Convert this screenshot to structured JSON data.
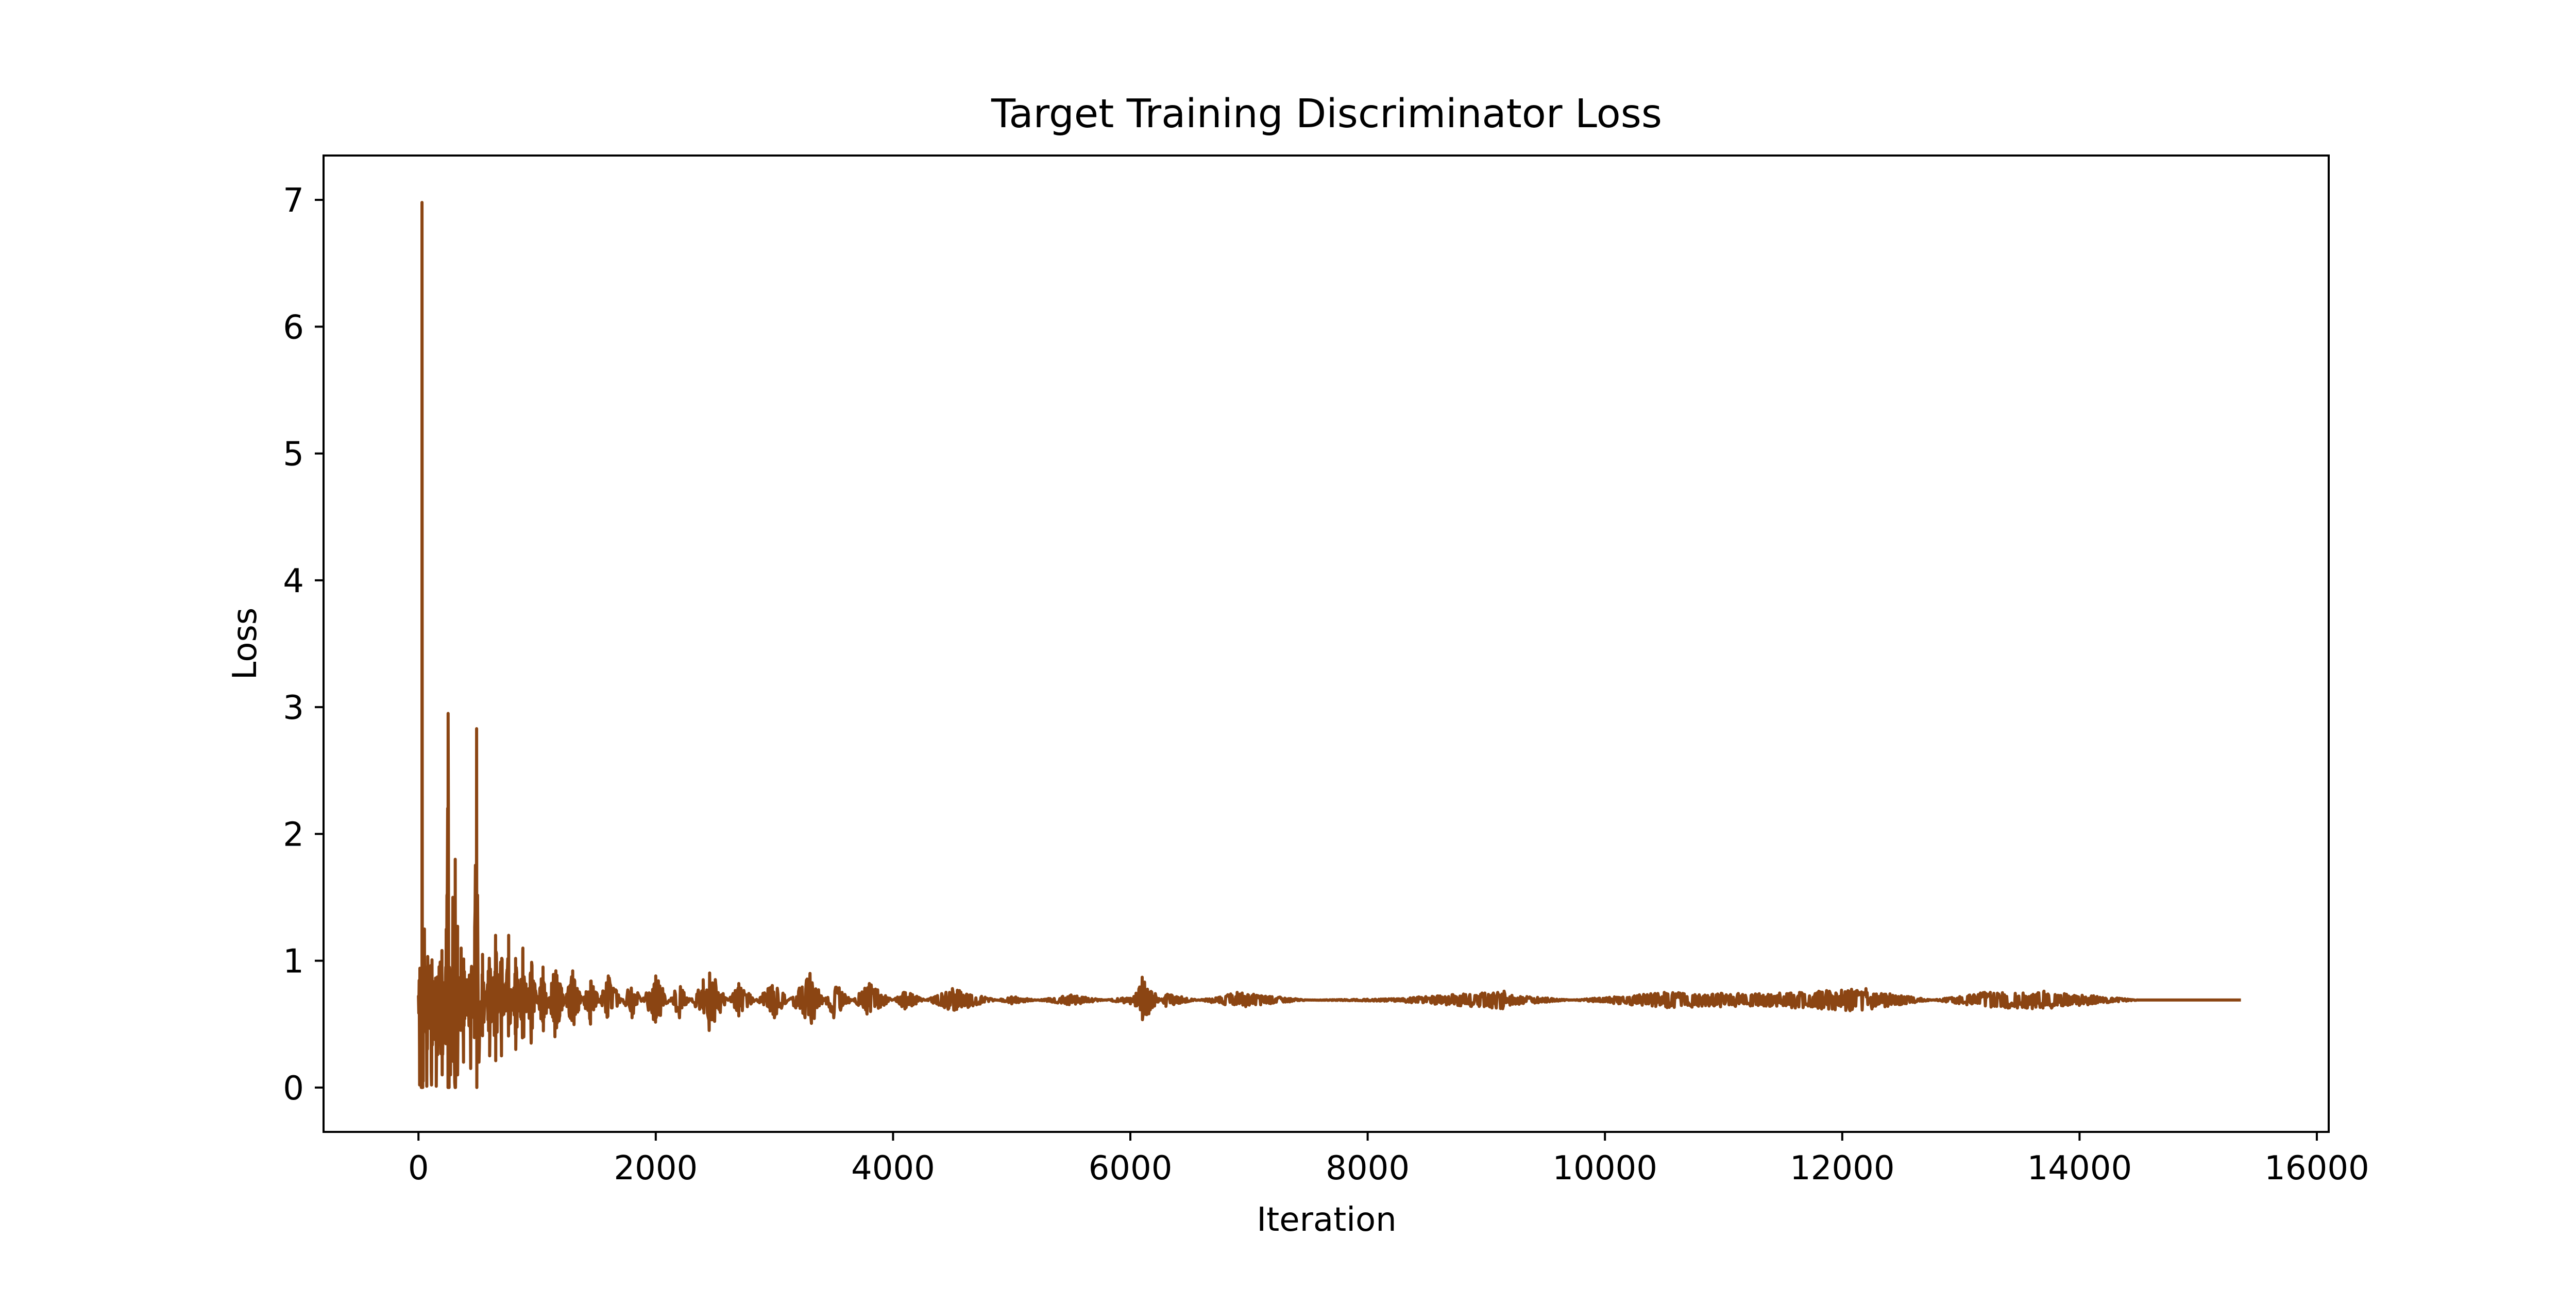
{
  "chart_data": {
    "type": "line",
    "title": "Target Training Discriminator Loss",
    "xlabel": "Iteration",
    "ylabel": "Loss",
    "xlim": [
      -800,
      16100
    ],
    "ylim": [
      -0.35,
      7.35
    ],
    "xticks": [
      0,
      2000,
      4000,
      6000,
      8000,
      10000,
      12000,
      14000,
      16000
    ],
    "yticks": [
      0,
      1,
      2,
      3,
      4,
      5,
      6,
      7
    ],
    "grid": false,
    "legend": "none",
    "series": [
      {
        "color": "#8B4513",
        "x_start": 0,
        "x_end": 15360,
        "values_approx": [
          [
            0,
            0.72
          ],
          [
            10,
            0.02
          ],
          [
            20,
            0.65
          ],
          [
            30,
            6.98
          ],
          [
            40,
            0.05
          ],
          [
            50,
            1.25
          ],
          [
            70,
            0.01
          ],
          [
            90,
            0.8
          ],
          [
            110,
            0.02
          ],
          [
            130,
            0.7
          ],
          [
            150,
            0.01
          ],
          [
            170,
            0.4
          ],
          [
            200,
            0.1
          ],
          [
            230,
            0.95
          ],
          [
            250,
            2.95
          ],
          [
            270,
            0.1
          ],
          [
            290,
            1.5
          ],
          [
            310,
            1.8
          ],
          [
            330,
            0.1
          ],
          [
            360,
            1.1
          ],
          [
            380,
            0.2
          ],
          [
            410,
            0.85
          ],
          [
            440,
            0.15
          ],
          [
            470,
            0.9
          ],
          [
            490,
            2.83
          ],
          [
            510,
            0.2
          ],
          [
            540,
            1.05
          ],
          [
            600,
            0.25
          ],
          [
            650,
            1.2
          ],
          [
            700,
            0.25
          ],
          [
            760,
            1.2
          ],
          [
            820,
            0.3
          ],
          [
            880,
            1.1
          ],
          [
            950,
            0.35
          ],
          [
            1050,
            0.95
          ],
          [
            1150,
            0.4
          ],
          [
            1300,
            0.92
          ],
          [
            1450,
            0.5
          ],
          [
            1600,
            0.88
          ],
          [
            1800,
            0.55
          ],
          [
            2000,
            0.88
          ],
          [
            2200,
            0.55
          ],
          [
            2400,
            0.85
          ],
          [
            2450,
            0.45
          ],
          [
            2700,
            0.82
          ],
          [
            3000,
            0.55
          ],
          [
            3300,
            0.9
          ],
          [
            3500,
            0.55
          ],
          [
            3800,
            0.82
          ],
          [
            4100,
            0.62
          ],
          [
            4500,
            0.78
          ],
          [
            5000,
            0.66
          ],
          [
            5500,
            0.73
          ],
          [
            6000,
            0.66
          ],
          [
            6100,
            0.87
          ],
          [
            6300,
            0.64
          ],
          [
            6900,
            0.75
          ],
          [
            7500,
            0.69
          ],
          [
            8200,
            0.7
          ],
          [
            9150,
            0.76
          ],
          [
            9200,
            0.65
          ],
          [
            10500,
            0.75
          ],
          [
            11300,
            0.74
          ],
          [
            12200,
            0.78
          ],
          [
            12250,
            0.62
          ],
          [
            13200,
            0.75
          ],
          [
            13700,
            0.76
          ],
          [
            14500,
            0.69
          ],
          [
            15360,
            0.69
          ]
        ]
      }
    ]
  }
}
